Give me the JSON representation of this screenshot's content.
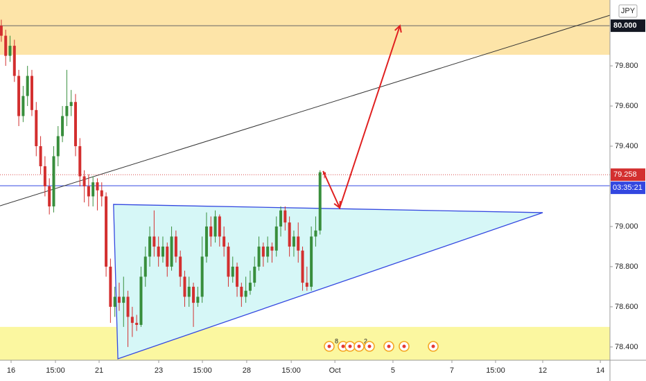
{
  "chart_data": {
    "type": "candlestick",
    "currency": "JPY",
    "x": [
      0,
      1,
      2,
      3,
      4,
      5,
      6,
      7,
      8,
      9,
      10,
      11,
      12,
      13,
      14,
      15,
      16,
      17,
      18,
      19,
      20,
      21,
      22,
      23,
      24,
      25,
      26,
      27,
      28,
      29,
      30,
      31,
      32,
      33,
      34,
      35,
      36,
      37,
      38,
      39,
      40,
      41,
      42,
      43,
      44,
      45,
      46,
      47,
      48,
      49,
      50,
      51,
      52,
      53,
      54,
      55,
      56,
      57,
      58,
      59,
      60,
      61,
      62,
      63,
      64,
      65,
      66,
      67,
      68,
      69,
      70,
      71,
      72,
      73,
      74
    ],
    "open": [
      80.0,
      79.95,
      79.85,
      79.9,
      79.75,
      79.55,
      79.65,
      79.75,
      79.58,
      79.4,
      79.3,
      79.2,
      79.1,
      79.35,
      79.45,
      79.55,
      79.6,
      79.62,
      79.4,
      79.25,
      79.2,
      79.15,
      79.22,
      79.18,
      79.15,
      78.8,
      78.6,
      78.65,
      78.62,
      78.65,
      78.55,
      78.52,
      78.51,
      78.75,
      78.85,
      78.95,
      78.9,
      78.85,
      78.9,
      78.8,
      78.95,
      78.85,
      78.75,
      78.65,
      78.7,
      78.62,
      78.65,
      78.85,
      79.0,
      78.95,
      79.05,
      78.95,
      78.9,
      78.75,
      78.8,
      78.7,
      78.65,
      78.68,
      78.72,
      78.8,
      78.9,
      78.85,
      78.9,
      78.88,
      79.0,
      79.08,
      79.02,
      78.9,
      78.95,
      78.88,
      78.72,
      78.7,
      78.95,
      78.98,
      79.27
    ],
    "high": [
      80.03,
      79.98,
      79.95,
      79.93,
      79.78,
      79.7,
      79.8,
      79.78,
      79.62,
      79.45,
      79.35,
      79.24,
      79.4,
      79.5,
      79.6,
      79.78,
      79.68,
      79.66,
      79.44,
      79.28,
      79.26,
      79.25,
      79.24,
      79.22,
      79.17,
      78.84,
      78.7,
      78.72,
      78.75,
      78.68,
      78.6,
      78.56,
      78.8,
      78.9,
      79.0,
      79.08,
      78.95,
      78.95,
      78.92,
      79.0,
      78.98,
      78.88,
      78.78,
      78.75,
      78.72,
      78.7,
      78.95,
      79.07,
      79.05,
      79.08,
      79.06,
      79.0,
      78.92,
      78.85,
      78.82,
      78.72,
      78.75,
      78.78,
      78.85,
      78.95,
      78.92,
      78.95,
      78.92,
      79.05,
      79.1,
      79.1,
      79.05,
      78.98,
      79.02,
      78.9,
      78.8,
      79.0,
      79.05,
      79.28,
      79.27
    ],
    "low": [
      79.92,
      79.8,
      79.82,
      79.72,
      79.5,
      79.52,
      79.6,
      79.55,
      79.35,
      79.26,
      79.15,
      79.06,
      79.07,
      79.3,
      79.42,
      79.5,
      79.55,
      79.35,
      79.2,
      79.12,
      79.1,
      79.1,
      79.08,
      79.1,
      78.75,
      78.52,
      78.55,
      78.58,
      78.5,
      78.4,
      78.45,
      78.48,
      78.5,
      78.7,
      78.8,
      78.85,
      78.8,
      78.82,
      78.75,
      78.78,
      78.82,
      78.7,
      78.6,
      78.6,
      78.5,
      78.6,
      78.62,
      78.82,
      78.9,
      78.92,
      78.9,
      78.85,
      78.7,
      78.72,
      78.65,
      78.6,
      78.62,
      78.66,
      78.7,
      78.78,
      78.8,
      78.82,
      78.82,
      78.85,
      78.95,
      78.98,
      78.85,
      78.85,
      78.82,
      78.68,
      78.68,
      78.68,
      78.9,
      78.96,
      79.24
    ],
    "close": [
      79.95,
      79.85,
      79.9,
      79.75,
      79.55,
      79.65,
      79.75,
      79.58,
      79.4,
      79.3,
      79.2,
      79.1,
      79.35,
      79.45,
      79.55,
      79.6,
      79.62,
      79.4,
      79.25,
      79.2,
      79.15,
      79.22,
      79.18,
      79.15,
      78.8,
      78.6,
      78.65,
      78.62,
      78.65,
      78.55,
      78.52,
      78.51,
      78.75,
      78.85,
      78.95,
      78.9,
      78.85,
      78.9,
      78.8,
      78.95,
      78.85,
      78.75,
      78.65,
      78.7,
      78.62,
      78.65,
      78.85,
      79.0,
      78.95,
      79.05,
      78.95,
      78.9,
      78.75,
      78.8,
      78.7,
      78.65,
      78.68,
      78.72,
      78.8,
      78.9,
      78.85,
      78.9,
      78.88,
      79.0,
      79.08,
      79.02,
      78.9,
      78.95,
      78.88,
      78.72,
      78.7,
      78.95,
      78.98,
      79.27,
      79.258
    ],
    "up_color": "#388e3c",
    "down_color": "#d32f2f",
    "xlim": [
      -0.3,
      139.4
    ],
    "ylim": [
      78.334,
      80.128
    ],
    "xticks": [
      {
        "value": 2.24,
        "label": "16"
      },
      {
        "value": 12.4,
        "label": "15:00"
      },
      {
        "value": 22.4,
        "label": "21"
      },
      {
        "value": 36.05,
        "label": "23"
      },
      {
        "value": 46.06,
        "label": "15:00"
      },
      {
        "value": 56.2,
        "label": "28"
      },
      {
        "value": 66.4,
        "label": "15:00"
      },
      {
        "value": 76.4,
        "label": "Oct"
      },
      {
        "value": 89.7,
        "label": "5"
      },
      {
        "value": 103.2,
        "label": "7"
      },
      {
        "value": 113.2,
        "label": "15:00"
      },
      {
        "value": 124.0,
        "label": "12"
      },
      {
        "value": 137.2,
        "label": "14"
      }
    ],
    "yticks": [
      {
        "value": 78.4,
        "label": "78.400"
      },
      {
        "value": 78.6,
        "label": "78.600"
      },
      {
        "value": 78.8,
        "label": "78.800"
      },
      {
        "value": 79.0,
        "label": "79.000"
      },
      {
        "value": 79.4,
        "label": "79.400"
      },
      {
        "value": 79.6,
        "label": "79.600"
      },
      {
        "value": 79.8,
        "label": "79.800"
      }
    ],
    "grid": false,
    "zones": [
      {
        "ylim": [
          79.855,
          80.128
        ],
        "color": "#fde4a8"
      },
      {
        "ylim": [
          78.334,
          78.5
        ],
        "color": "#fbf7a0"
      }
    ],
    "trendline": {
      "x": [
        -0.3,
        139.4
      ],
      "y": [
        79.103,
        80.052
      ],
      "color": "#333333"
    },
    "hlines": [
      {
        "value": 80.0,
        "label": "80.000",
        "color": "#666666"
      },
      {
        "value": 79.203,
        "color": "#3347e0"
      }
    ],
    "last_price": {
      "value": 79.258,
      "countdown": "03:35:21",
      "color": "#d32f2f",
      "countdown_color": "#3347e0"
    },
    "triangle": {
      "x": [
        25.7,
        124.0,
        26.7
      ],
      "y": [
        79.11,
        79.069,
        78.341
      ],
      "color": "#3347e0",
      "fill": "#d6f7f7"
    },
    "arrow": {
      "x": [
        73.7,
        77.5,
        91.3
      ],
      "y": [
        79.276,
        79.093,
        80.0
      ],
      "color": "#e02020"
    },
    "event_badges": [
      "8",
      "2"
    ]
  }
}
